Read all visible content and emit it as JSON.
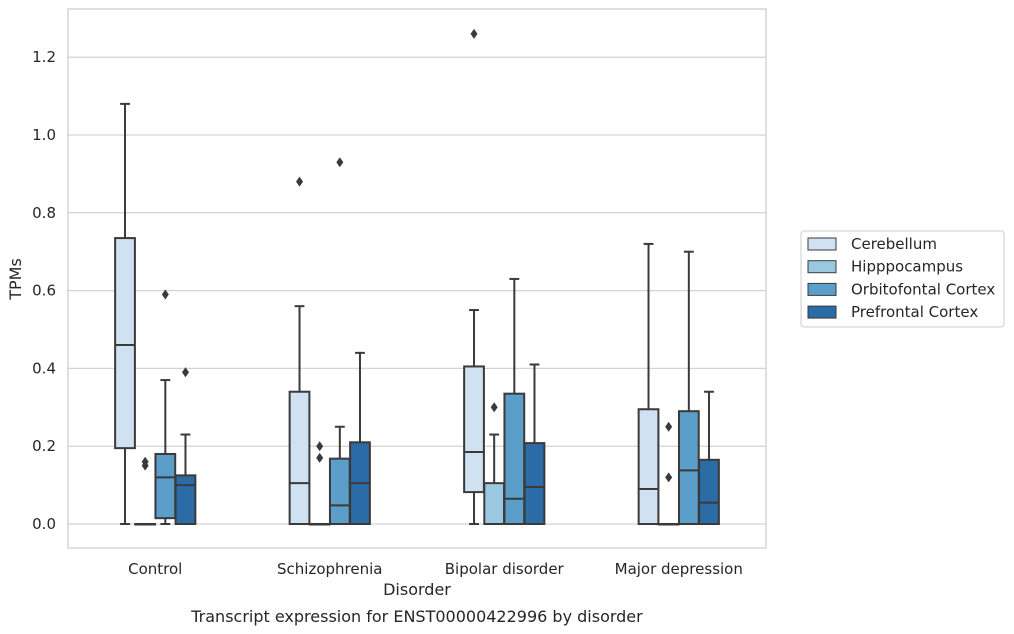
{
  "chart_data": {
    "type": "box",
    "title": "",
    "caption": "Transcript expression for ENST00000422996 by disorder",
    "xlabel": "Disorder",
    "ylabel": "TPMs",
    "ylim": [
      -0.06,
      1.33
    ],
    "yticks": [
      0.0,
      0.2,
      0.4,
      0.6,
      0.8,
      1.0,
      1.2
    ],
    "ytick_labels": [
      "0.0",
      "0.2",
      "0.4",
      "0.6",
      "0.8",
      "1.0",
      "1.2"
    ],
    "grid": true,
    "legend_position": "right",
    "categories": [
      "Control",
      "Schizophrenia",
      "Bipolar disorder",
      "Major depression"
    ],
    "series": [
      {
        "name": "Cerebellum",
        "color": "#d0e1f2",
        "boxes": [
          {
            "whislo": 0.0,
            "q1": 0.195,
            "med": 0.46,
            "q3": 0.735,
            "whishi": 1.08,
            "fliers": []
          },
          {
            "whislo": 0.0,
            "q1": 0.0,
            "med": 0.105,
            "q3": 0.34,
            "whishi": 0.56,
            "fliers": [
              0.88
            ]
          },
          {
            "whislo": 0.0,
            "q1": 0.082,
            "med": 0.185,
            "q3": 0.405,
            "whishi": 0.55,
            "fliers": [
              1.26
            ]
          },
          {
            "whislo": 0.0,
            "q1": 0.0,
            "med": 0.09,
            "q3": 0.295,
            "whishi": 0.72,
            "fliers": []
          }
        ]
      },
      {
        "name": "Hipppocampus",
        "color": "#9ac8e0",
        "boxes": [
          {
            "whislo": 0.0,
            "q1": 0.0,
            "med": 0.0,
            "q3": 0.0,
            "whishi": 0.0,
            "fliers": [
              0.15,
              0.16
            ]
          },
          {
            "whislo": 0.0,
            "q1": 0.0,
            "med": 0.0,
            "q3": 0.0,
            "whishi": 0.0,
            "fliers": [
              0.17,
              0.2
            ]
          },
          {
            "whislo": 0.0,
            "q1": 0.0,
            "med": 0.0,
            "q3": 0.105,
            "whishi": 0.23,
            "fliers": [
              0.3
            ]
          },
          {
            "whislo": 0.0,
            "q1": 0.0,
            "med": 0.0,
            "q3": 0.0,
            "whishi": 0.0,
            "fliers": [
              0.12,
              0.25
            ]
          }
        ]
      },
      {
        "name": "Orbitofontal Cortex",
        "color": "#5a9ec9",
        "boxes": [
          {
            "whislo": 0.0,
            "q1": 0.015,
            "med": 0.12,
            "q3": 0.18,
            "whishi": 0.37,
            "fliers": [
              0.59
            ]
          },
          {
            "whislo": 0.0,
            "q1": 0.0,
            "med": 0.048,
            "q3": 0.168,
            "whishi": 0.25,
            "fliers": [
              0.93
            ]
          },
          {
            "whislo": 0.0,
            "q1": 0.0,
            "med": 0.065,
            "q3": 0.335,
            "whishi": 0.63,
            "fliers": []
          },
          {
            "whislo": 0.0,
            "q1": 0.0,
            "med": 0.138,
            "q3": 0.29,
            "whishi": 0.7,
            "fliers": []
          }
        ]
      },
      {
        "name": "Prefrontal Cortex",
        "color": "#2b6ca6",
        "boxes": [
          {
            "whislo": 0.0,
            "q1": 0.0,
            "med": 0.1,
            "q3": 0.125,
            "whishi": 0.23,
            "fliers": [
              0.39
            ]
          },
          {
            "whislo": 0.0,
            "q1": 0.0,
            "med": 0.105,
            "q3": 0.21,
            "whishi": 0.44,
            "fliers": []
          },
          {
            "whislo": 0.0,
            "q1": 0.0,
            "med": 0.095,
            "q3": 0.208,
            "whishi": 0.41,
            "fliers": []
          },
          {
            "whislo": 0.0,
            "q1": 0.0,
            "med": 0.055,
            "q3": 0.165,
            "whishi": 0.34,
            "fliers": []
          }
        ]
      }
    ]
  }
}
